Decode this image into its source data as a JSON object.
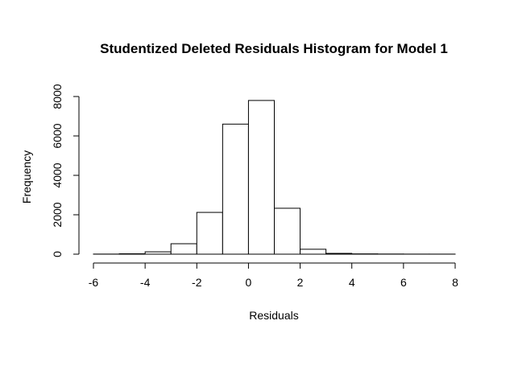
{
  "chart_data": {
    "type": "bar",
    "title": "Studentized Deleted Residuals Histogram for Model 1",
    "xlabel": "Residuals",
    "ylabel": "Frequency",
    "xlim": [
      -6,
      8
    ],
    "ylim": [
      0,
      8000
    ],
    "xticks": [
      -6,
      -4,
      -2,
      0,
      2,
      4,
      6,
      8
    ],
    "yticks": [
      0,
      2000,
      4000,
      6000,
      8000
    ],
    "bin_edges": [
      -6,
      -5,
      -4,
      -3,
      -2,
      -1,
      0,
      1,
      2,
      3,
      4,
      5,
      6,
      7,
      8
    ],
    "values": [
      5,
      20,
      120,
      530,
      2120,
      6600,
      7800,
      2330,
      250,
      40,
      15,
      8,
      4,
      3
    ],
    "grid": false,
    "legend": "none",
    "bar_fill": "#ffffff",
    "bar_stroke": "#000000"
  }
}
